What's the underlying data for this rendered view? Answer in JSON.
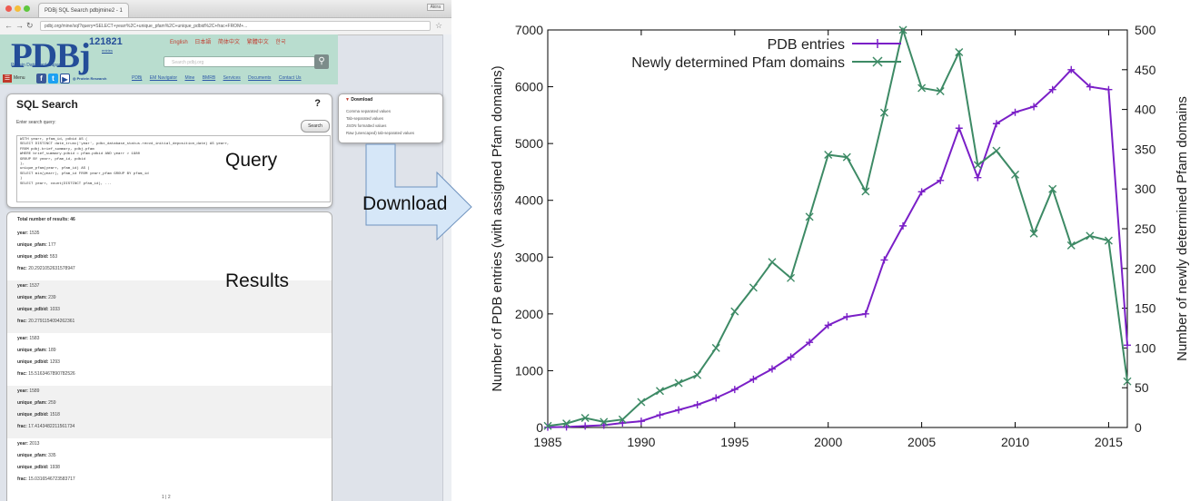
{
  "browser": {
    "tab_title": "PDBj SQL Search pdbjmine2 - 1",
    "user_badge": "Akira",
    "url": "pdbj.org/mine/sql?query=SELECT+yearr%2C+unique_pfam%2C+unique_pdbid%2C+frac+FROM+..."
  },
  "pdbj": {
    "logo": "PDBj",
    "logo_subtitle": "Protein Data Bank Japan",
    "entry_count": "121821",
    "entry_count_sub": "entries",
    "lang_links": [
      "English",
      "日本語",
      "简体中文",
      "繁體中文",
      "한국"
    ],
    "search_placeholder": "Search pdbj.org",
    "menu_label": "Menu",
    "nav_links": [
      "PDBj",
      "EM Navigator",
      "Mine",
      "BMRB",
      "Services",
      "Documents",
      "Contact Us"
    ]
  },
  "sql": {
    "title": "SQL Search",
    "help": "?",
    "hint": "Enter search query:",
    "run_label": "Search",
    "query_lines": [
      "WITH    yearr, pfam_id, pdbid AS (",
      "SELECT DISTINCT date_trunc('year', pdbx_database_status.recvd_initial_deposition_date) AS yearr,",
      "FROM pdbj.brief_summary, pdbj.pfam",
      "WHERE brief_summary.pdbid = pfam.pdbid AND yearr > 1980",
      "GROUP BY yearr, pfam_id, pdbid",
      "),",
      "unique_pfam(yearr, pfam_id) AS (",
      "SELECT min(yearr), pfam_id FROM yearr_pfam GROUP BY pfam_id",
      ")",
      "SELECT yearr, count(DISTINCT pfam_id), ..."
    ]
  },
  "download": {
    "title": "Download",
    "items": [
      "Comma separated values",
      "Tab-separated values",
      "JSON formatted values",
      "Raw (unescaped) tab-separated values"
    ]
  },
  "results": {
    "total": "Total number of results: 46",
    "blocks": [
      {
        "year": "1535",
        "unique_pfam": "177",
        "unique_pdbid": "553",
        "frac": "20.2921052631578947"
      },
      {
        "year": "1537",
        "unique_pfam": "239",
        "unique_pdbid": "1033",
        "frac": "20.2791154094262361"
      },
      {
        "year": "1583",
        "unique_pfam": "189",
        "unique_pdbid": "1293",
        "frac": "15.5163467890782526"
      },
      {
        "year": "1589",
        "unique_pfam": "259",
        "unique_pdbid": "1518",
        "frac": "17.4143482211561734"
      },
      {
        "year": "2013",
        "unique_pfam": "335",
        "unique_pdbid": "1938",
        "frac": "15.0316546723583717"
      }
    ],
    "labels": {
      "year": "year:",
      "unique_pfam": "unique_pfam:",
      "unique_pdbid": "unique_pdbid:",
      "frac": "frac:"
    },
    "pager": "1 | 2"
  },
  "annotations": {
    "query": "Query",
    "download": "Download",
    "results": "Results"
  },
  "chart_data": {
    "type": "line",
    "x": [
      1985,
      1986,
      1987,
      1988,
      1989,
      1990,
      1991,
      1992,
      1993,
      1994,
      1995,
      1996,
      1997,
      1998,
      1999,
      2000,
      2001,
      2002,
      2003,
      2004,
      2005,
      2006,
      2007,
      2008,
      2009,
      2010,
      2011,
      2012,
      2013,
      2014,
      2015,
      2016
    ],
    "xlim": [
      1985,
      2016
    ],
    "x_ticks": [
      "1985",
      "1990",
      "1995",
      "2000",
      "2005",
      "2010",
      "2015"
    ],
    "ylabel": "Number of PDB entries (with assigned Pfam domains)",
    "ylim": [
      0,
      7000
    ],
    "y_ticks": [
      "0",
      "1000",
      "2000",
      "3000",
      "4000",
      "5000",
      "6000",
      "7000"
    ],
    "y2label": "Number of newly determined Pfam domains",
    "y2lim": [
      0,
      500
    ],
    "y2_ticks": [
      "0",
      "50",
      "100",
      "150",
      "200",
      "250",
      "300",
      "350",
      "400",
      "450",
      "500"
    ],
    "series": [
      {
        "name": "PDB entries",
        "axis": "left",
        "color": "#7a1fc7",
        "values": [
          5,
          10,
          25,
          40,
          80,
          110,
          220,
          310,
          400,
          520,
          670,
          850,
          1030,
          1240,
          1500,
          1800,
          1950,
          2000,
          2950,
          3550,
          4150,
          4350,
          5270,
          4400,
          5350,
          5550,
          5650,
          5950,
          6300,
          6000,
          5950,
          1450
        ]
      },
      {
        "name": "Newly determined Pfam domains",
        "axis": "right",
        "color": "#3d8a65",
        "values": [
          2,
          5,
          12,
          7,
          10,
          32,
          46,
          56,
          66,
          100,
          146,
          176,
          208,
          188,
          265,
          343,
          340,
          297,
          396,
          500,
          427,
          423,
          472,
          330,
          348,
          318,
          244,
          300,
          229,
          241,
          235,
          58
        ]
      }
    ],
    "legend": "top-right",
    "grid": false
  }
}
